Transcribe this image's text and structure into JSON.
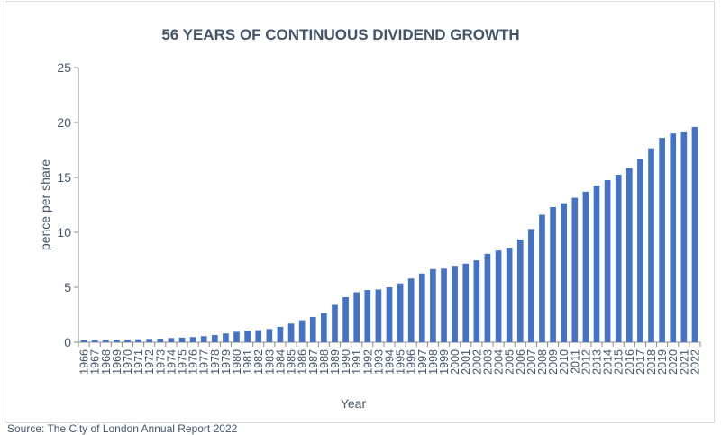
{
  "chart_data": {
    "type": "bar",
    "title": "56 YEARS OF CONTINUOUS DIVIDEND GROWTH",
    "xlabel": "Year",
    "ylabel": "pence per share",
    "ylim": [
      0,
      25
    ],
    "yticks": [
      0,
      5,
      10,
      15,
      20,
      25
    ],
    "grid": false,
    "legend": "none",
    "bar_color": "#4472c4",
    "text_color": "#44546a",
    "categories": [
      "1966",
      "1967",
      "1968",
      "1969",
      "1970",
      "1971",
      "1972",
      "1973",
      "1974",
      "1975",
      "1976",
      "1977",
      "1978",
      "1979",
      "1980",
      "1981",
      "1982",
      "1983",
      "1984",
      "1985",
      "1986",
      "1987",
      "1988",
      "1989",
      "1990",
      "1991",
      "1992",
      "1993",
      "1994",
      "1995",
      "1996",
      "1997",
      "1998",
      "1999",
      "2000",
      "2001",
      "2002",
      "2003",
      "2004",
      "2005",
      "2006",
      "2007",
      "2008",
      "2009",
      "2010",
      "2011",
      "2012",
      "2013",
      "2014",
      "2015",
      "2016",
      "2017",
      "2018",
      "2019",
      "2020",
      "2021",
      "2022"
    ],
    "values": [
      0.2,
      0.2,
      0.22,
      0.24,
      0.25,
      0.27,
      0.3,
      0.33,
      0.38,
      0.42,
      0.47,
      0.55,
      0.65,
      0.8,
      0.95,
      1.05,
      1.1,
      1.2,
      1.4,
      1.7,
      2.0,
      2.3,
      2.65,
      3.4,
      4.1,
      4.55,
      4.75,
      4.8,
      5.0,
      5.35,
      5.8,
      6.25,
      6.65,
      6.7,
      6.95,
      7.15,
      7.45,
      8.05,
      8.35,
      8.6,
      9.35,
      10.3,
      11.6,
      12.3,
      12.65,
      13.15,
      13.7,
      14.25,
      14.75,
      15.25,
      15.85,
      16.7,
      17.65,
      18.6,
      19.0,
      19.1,
      19.6
    ]
  },
  "footer": {
    "source_text": "Source: The City of London Annual Report 2022"
  }
}
